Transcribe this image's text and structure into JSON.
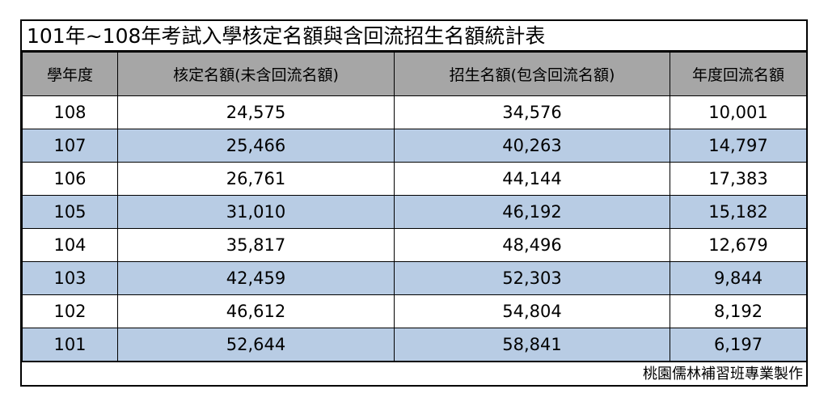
{
  "title": "101年~108年考試入學核定名額與含回流招生名額統計表",
  "columns": [
    "學年度",
    "核定名額(未含回流名額)",
    "招生名額(包含回流名額)",
    "年度回流名額"
  ],
  "rows": [
    {
      "year": "108",
      "approved": "24,575",
      "enrollment": "34,576",
      "returning": "10,001"
    },
    {
      "year": "107",
      "approved": "25,466",
      "enrollment": "40,263",
      "returning": "14,797"
    },
    {
      "year": "106",
      "approved": "26,761",
      "enrollment": "44,144",
      "returning": "17,383"
    },
    {
      "year": "105",
      "approved": "31,010",
      "enrollment": "46,192",
      "returning": "15,182"
    },
    {
      "year": "104",
      "approved": "35,817",
      "enrollment": "48,496",
      "returning": "12,679"
    },
    {
      "year": "103",
      "approved": "42,459",
      "enrollment": "52,303",
      "returning": "9,844"
    },
    {
      "year": "102",
      "approved": "46,612",
      "enrollment": "54,804",
      "returning": "8,192"
    },
    {
      "year": "101",
      "approved": "52,644",
      "enrollment": "58,841",
      "returning": "6,197"
    }
  ],
  "footer": "桃園儒林補習班專業製作",
  "colors": {
    "header_bg": "#a6a6a6",
    "alt_row_bg": "#b8cce4",
    "border": "#000000"
  }
}
